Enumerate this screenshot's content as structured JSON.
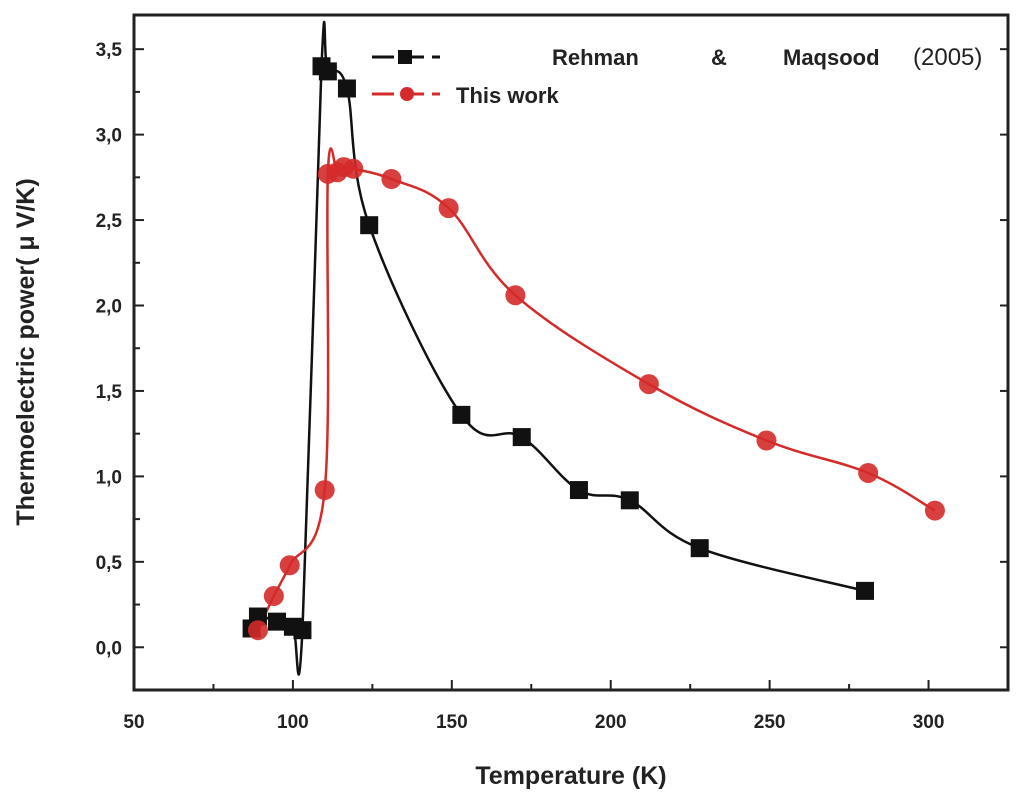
{
  "chart_data": {
    "type": "line",
    "xlabel": "Temperature (K)",
    "ylabel": "Thermoelectric power( μ V/K)",
    "xlim": [
      50,
      325
    ],
    "ylim": [
      -0.25,
      3.7
    ],
    "xticks": [
      50,
      100,
      150,
      200,
      250,
      300
    ],
    "xtick_labels": [
      "50",
      "100",
      "150",
      "200",
      "250",
      "300"
    ],
    "yticks": [
      0.0,
      0.5,
      1.0,
      1.5,
      2.0,
      2.5,
      3.0,
      3.5
    ],
    "ytick_labels": [
      "0,0",
      "0,5",
      "1,0",
      "1,5",
      "2,0",
      "2,5",
      "3,0",
      "3,5"
    ],
    "legend_position": "top",
    "grid": false,
    "series": [
      {
        "name": "Rehman & Maqsood (2005)",
        "legend_parts": [
          "Rehman",
          "&",
          "Maqsood",
          "(2005)"
        ],
        "color": "#111111",
        "marker": "square",
        "points": [
          [
            87,
            0.11
          ],
          [
            89,
            0.18
          ],
          [
            95,
            0.15
          ],
          [
            100,
            0.12
          ],
          [
            103,
            0.1
          ],
          [
            109,
            3.4
          ],
          [
            111,
            3.37
          ],
          [
            117,
            3.27
          ],
          [
            124,
            2.47
          ],
          [
            153,
            1.36
          ],
          [
            172,
            1.23
          ],
          [
            190,
            0.92
          ],
          [
            206,
            0.86
          ],
          [
            228,
            0.58
          ],
          [
            280,
            0.33
          ]
        ]
      },
      {
        "name": "This work",
        "color": "#d42a2a",
        "marker": "circle",
        "points": [
          [
            89,
            0.1
          ],
          [
            94,
            0.3
          ],
          [
            99,
            0.48
          ],
          [
            110,
            0.92
          ],
          [
            111,
            2.77
          ],
          [
            114,
            2.78
          ],
          [
            116,
            2.81
          ],
          [
            119,
            2.8
          ],
          [
            131,
            2.74
          ],
          [
            149,
            2.57
          ],
          [
            170,
            2.06
          ],
          [
            212,
            1.54
          ],
          [
            249,
            1.21
          ],
          [
            281,
            1.02
          ],
          [
            302,
            0.8
          ]
        ]
      }
    ]
  }
}
